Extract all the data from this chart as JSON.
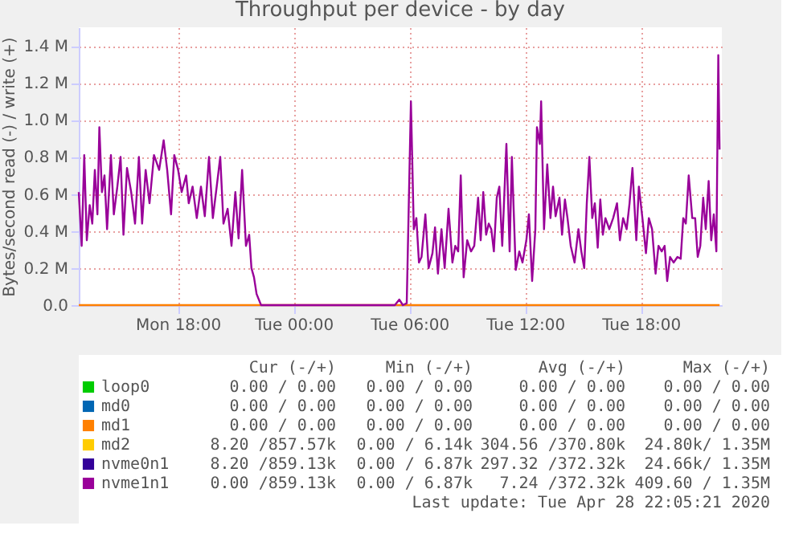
{
  "chart_data": {
    "type": "line",
    "title": "Throughput per device - by day",
    "ylabel": "Bytes/second read (-) / write (+)",
    "xlim": [
      "2020-04-27T12:52",
      "2020-04-28T22:12"
    ],
    "ylim": [
      0,
      1.5
    ],
    "xticks": [
      {
        "value": "2020-04-27T18:00",
        "label": "Mon 18:00"
      },
      {
        "value": "2020-04-28T00:00",
        "label": "Tue 00:00"
      },
      {
        "value": "2020-04-28T06:00",
        "label": "Tue 06:00"
      },
      {
        "value": "2020-04-28T12:00",
        "label": "Tue 12:00"
      },
      {
        "value": "2020-04-28T18:00",
        "label": "Tue 18:00"
      }
    ],
    "yticks": [
      {
        "value": 0,
        "label": "0.0"
      },
      {
        "value": 0.2,
        "label": "0.2 M"
      },
      {
        "value": 0.4,
        "label": "0.4 M"
      },
      {
        "value": 0.6,
        "label": "0.6 M"
      },
      {
        "value": 0.8,
        "label": "0.8 M"
      },
      {
        "value": 1.0,
        "label": "1.0 M"
      },
      {
        "value": 1.2,
        "label": "1.2 M"
      },
      {
        "value": 1.4,
        "label": "1.4 M"
      }
    ],
    "grid": true,
    "legend": "bottom",
    "marker": "none",
    "line_style": "solid",
    "series": [
      {
        "name": "loop0",
        "color": "#00cc00"
      },
      {
        "name": "md0",
        "color": "#0066b3"
      },
      {
        "name": "md1",
        "color": "#ff8000",
        "x": [
          "2020-04-27T12:52",
          "2020-04-28T22:05"
        ],
        "values": [
          0,
          0
        ]
      },
      {
        "name": "md2",
        "color": "#ffcc00"
      },
      {
        "name": "nvme0n1",
        "color": "#330099"
      },
      {
        "name": "nvme1n1",
        "color": "#990099",
        "x": [
          "2020-04-27T12:52",
          "2020-04-27T13:01",
          "2020-04-27T13:09",
          "2020-04-27T13:17",
          "2020-04-27T13:26",
          "2020-04-27T13:34",
          "2020-04-27T13:42",
          "2020-04-27T13:50",
          "2020-04-27T13:56",
          "2020-04-27T14:04",
          "2020-04-27T14:12",
          "2020-04-27T14:20",
          "2020-04-27T14:32",
          "2020-04-27T14:41",
          "2020-04-27T14:52",
          "2020-04-27T15:02",
          "2020-04-27T15:11",
          "2020-04-27T15:22",
          "2020-04-27T15:35",
          "2020-04-27T15:47",
          "2020-04-27T15:59",
          "2020-04-27T16:09",
          "2020-04-27T16:20",
          "2020-04-27T16:32",
          "2020-04-27T16:46",
          "2020-04-27T17:02",
          "2020-04-27T17:16",
          "2020-04-27T17:27",
          "2020-04-27T17:39",
          "2020-04-27T17:49",
          "2020-04-27T18:01",
          "2020-04-27T18:12",
          "2020-04-27T18:26",
          "2020-04-27T18:34",
          "2020-04-27T18:46",
          "2020-04-27T18:59",
          "2020-04-27T19:12",
          "2020-04-27T19:24",
          "2020-04-27T19:37",
          "2020-04-27T19:49",
          "2020-04-27T20:01",
          "2020-04-27T20:12",
          "2020-04-27T20:22",
          "2020-04-27T20:35",
          "2020-04-27T20:47",
          "2020-04-27T20:59",
          "2020-04-27T21:09",
          "2020-04-27T21:20",
          "2020-04-27T21:32",
          "2020-04-27T21:42",
          "2020-04-27T21:49",
          "2020-04-27T21:57",
          "2020-04-27T22:05",
          "2020-04-27T22:19",
          "2020-04-28T05:15",
          "2020-04-28T05:29",
          "2020-04-28T05:40",
          "2020-04-28T05:52",
          "2020-04-28T06:05",
          "2020-04-28T06:14",
          "2020-04-28T06:22",
          "2020-04-28T06:30",
          "2020-04-28T06:38",
          "2020-04-28T06:50",
          "2020-04-28T07:00",
          "2020-04-28T07:12",
          "2020-04-28T07:20",
          "2020-04-28T07:29",
          "2020-04-28T07:40",
          "2020-04-28T07:50",
          "2020-04-28T08:02",
          "2020-04-28T08:14",
          "2020-04-28T08:23",
          "2020-04-28T08:32",
          "2020-04-28T08:40",
          "2020-04-28T08:49",
          "2020-04-28T09:00",
          "2020-04-28T09:12",
          "2020-04-28T09:22",
          "2020-04-28T09:34",
          "2020-04-28T09:42",
          "2020-04-28T09:50",
          "2020-04-28T09:59",
          "2020-04-28T10:07",
          "2020-04-28T10:15",
          "2020-04-28T10:23",
          "2020-04-28T10:32",
          "2020-04-28T10:40",
          "2020-04-28T10:49",
          "2020-04-28T11:02",
          "2020-04-28T11:12",
          "2020-04-28T11:19",
          "2020-04-28T11:31",
          "2020-04-28T11:42",
          "2020-04-28T11:52",
          "2020-04-28T12:04",
          "2020-04-28T12:12",
          "2020-04-28T12:22",
          "2020-04-28T12:32",
          "2020-04-28T12:37",
          "2020-04-28T12:46",
          "2020-04-28T12:50",
          "2020-04-28T12:59",
          "2020-04-28T13:09",
          "2020-04-28T13:19",
          "2020-04-28T13:27",
          "2020-04-28T13:35",
          "2020-04-28T13:47",
          "2020-04-28T13:55",
          "2020-04-28T14:04",
          "2020-04-28T14:12",
          "2020-04-28T14:22",
          "2020-04-28T14:34",
          "2020-04-28T14:46",
          "2020-04-28T14:55",
          "2020-04-28T15:04",
          "2020-04-28T15:12",
          "2020-04-28T15:20",
          "2020-04-28T15:29",
          "2020-04-28T15:37",
          "2020-04-28T15:46",
          "2020-04-28T15:54",
          "2020-04-28T16:02",
          "2020-04-28T16:10",
          "2020-04-28T16:22",
          "2020-04-28T16:34",
          "2020-04-28T16:46",
          "2020-04-28T16:55",
          "2020-04-28T17:05",
          "2020-04-28T17:16",
          "2020-04-28T17:25",
          "2020-04-28T17:34",
          "2020-04-28T17:46",
          "2020-04-28T17:54",
          "2020-04-28T18:05",
          "2020-04-28T18:16",
          "2020-04-28T18:25",
          "2020-04-28T18:35",
          "2020-04-28T18:46",
          "2020-04-28T18:55",
          "2020-04-28T19:05",
          "2020-04-28T19:14",
          "2020-04-28T19:22",
          "2020-04-28T19:31",
          "2020-04-28T19:42",
          "2020-04-28T19:54",
          "2020-04-28T20:04",
          "2020-04-28T20:12",
          "2020-04-28T20:20",
          "2020-04-28T20:29",
          "2020-04-28T20:40",
          "2020-04-28T20:49",
          "2020-04-28T20:57",
          "2020-04-28T21:05",
          "2020-04-28T21:14",
          "2020-04-28T21:22",
          "2020-04-28T21:31",
          "2020-04-28T21:39",
          "2020-04-28T21:47",
          "2020-04-28T21:55",
          "2020-04-28T22:01",
          "2020-04-28T22:05"
        ],
        "values": [
          0.61,
          0.32,
          0.81,
          0.35,
          0.54,
          0.44,
          0.73,
          0.49,
          0.96,
          0.61,
          0.7,
          0.41,
          0.81,
          0.49,
          0.64,
          0.8,
          0.38,
          0.74,
          0.61,
          0.44,
          0.8,
          0.44,
          0.73,
          0.55,
          0.81,
          0.73,
          0.89,
          0.73,
          0.49,
          0.81,
          0.73,
          0.61,
          0.7,
          0.55,
          0.64,
          0.47,
          0.64,
          0.48,
          0.8,
          0.47,
          0.64,
          0.8,
          0.44,
          0.52,
          0.32,
          0.61,
          0.36,
          0.73,
          0.32,
          0.38,
          0.2,
          0.15,
          0.06,
          0.0,
          0.0,
          0.03,
          0.0,
          0.01,
          1.1,
          0.41,
          0.47,
          0.23,
          0.26,
          0.49,
          0.2,
          0.28,
          0.42,
          0.17,
          0.41,
          0.2,
          0.52,
          0.23,
          0.32,
          0.29,
          0.7,
          0.15,
          0.35,
          0.29,
          0.32,
          0.58,
          0.35,
          0.61,
          0.38,
          0.44,
          0.41,
          0.29,
          0.58,
          0.64,
          0.32,
          0.87,
          0.29,
          0.8,
          0.19,
          0.29,
          0.23,
          0.35,
          0.49,
          0.13,
          0.41,
          0.96,
          0.87,
          1.1,
          0.41,
          0.76,
          0.47,
          0.64,
          0.48,
          0.58,
          0.38,
          0.57,
          0.47,
          0.32,
          0.23,
          0.41,
          0.29,
          0.2,
          0.55,
          0.8,
          0.47,
          0.55,
          0.31,
          0.57,
          0.38,
          0.47,
          0.41,
          0.47,
          0.55,
          0.35,
          0.47,
          0.41,
          0.55,
          0.74,
          0.35,
          0.64,
          0.47,
          0.28,
          0.47,
          0.41,
          0.17,
          0.32,
          0.29,
          0.32,
          0.13,
          0.26,
          0.23,
          0.26,
          0.25,
          0.47,
          0.44,
          0.7,
          0.47,
          0.47,
          0.26,
          0.32,
          0.58,
          0.41,
          0.67,
          0.35,
          0.49,
          0.29,
          1.35,
          0.84
        ]
      }
    ],
    "annotations": [
      "Cur (-/+)",
      "Min (-/+)",
      "Avg (-/+)",
      "Max (-/+)",
      "0.00 /  0.00",
      "0.00 /  0.00",
      "0.00 /  0.00",
      "0.00 /  0.00",
      "0.00 /  0.00",
      "0.00 /  0.00",
      "0.00 /  0.00",
      "0.00 /  0.00",
      "0.00 /  0.00",
      "0.00 /  0.00",
      "0.00 /  0.00",
      "0.00 /  0.00",
      "8.20 /857.57k",
      "0.00 /  6.14k",
      "304.56 /370.80k",
      "24.80k/  1.35M",
      "8.20 /859.13k",
      "0.00 /  6.87k",
      "297.32 /372.32k",
      "24.66k/  1.35M",
      "0.00 /859.13k",
      "0.00 /  6.87k",
      "7.24 /372.32k",
      "409.60 /  1.35M",
      "Last update: Tue Apr 28 22:05:21 2020"
    ]
  }
}
